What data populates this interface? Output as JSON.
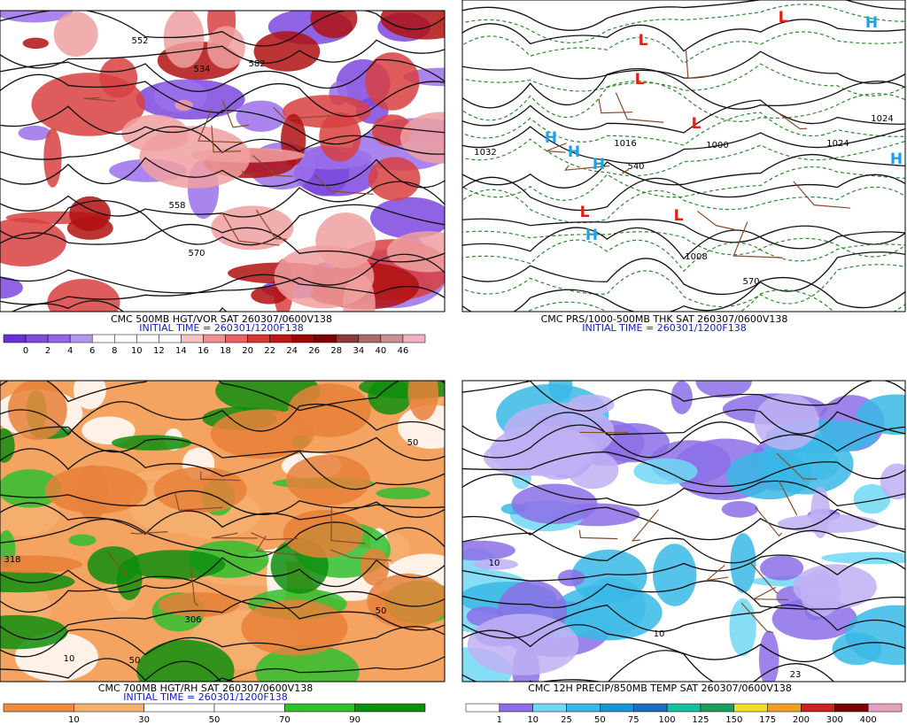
{
  "panels": [
    {
      "caption": "CMC 500MB HGT/VOR SAT 260307/0600V138",
      "init": "INITIAL TIME = 260301/1200F138",
      "background": "#ffffff",
      "legend": {
        "labels": [
          "0",
          "2",
          "4",
          "6",
          "8",
          "10",
          "12",
          "14",
          "16",
          "18",
          "20",
          "22",
          "24",
          "26",
          "28",
          "34",
          "40",
          "46"
        ],
        "colors": [
          "#6a2fd6",
          "#7f4ce0",
          "#9266e6",
          "#b496ee",
          "#ffffff",
          "#ffffff",
          "#ffffff",
          "#ffffff",
          "#f6c2c2",
          "#ef9090",
          "#e86060",
          "#d83434",
          "#c01414",
          "#a00404",
          "#800000",
          "#8a3a3a",
          "#a86a6a",
          "#c89090",
          "#f0b0c0"
        ]
      },
      "map_labels": [
        {
          "text": "552"
        },
        {
          "text": "534"
        },
        {
          "text": "558"
        },
        {
          "text": "570"
        },
        {
          "text": "582"
        }
      ]
    },
    {
      "caption": "CMC PRS/1000-500MB THK SAT 260307/0600V138",
      "init": "INITIAL TIME = 260301/1200F138",
      "background": "#ffffff",
      "map_labels": [
        {
          "text": "1032"
        },
        {
          "text": "1016"
        },
        {
          "text": "1000"
        },
        {
          "text": "1008"
        },
        {
          "text": "570"
        },
        {
          "text": "1024"
        },
        {
          "text": "1024"
        },
        {
          "text": "540"
        },
        {
          "text": "H",
          "color": "#1ea0e6"
        },
        {
          "text": "H",
          "color": "#1ea0e6"
        },
        {
          "text": "H",
          "color": "#1ea0e6"
        },
        {
          "text": "H",
          "color": "#1ea0e6"
        },
        {
          "text": "H",
          "color": "#1ea0e6"
        },
        {
          "text": "H",
          "color": "#1ea0e6"
        },
        {
          "text": "L",
          "color": "#e02010"
        },
        {
          "text": "L",
          "color": "#e02010"
        },
        {
          "text": "L",
          "color": "#e02010"
        },
        {
          "text": "L",
          "color": "#e02010"
        },
        {
          "text": "L",
          "color": "#e02010"
        },
        {
          "text": "L",
          "color": "#e02010"
        }
      ]
    },
    {
      "caption": "CMC 700MB HGT/RH SAT 260307/0600V138",
      "init": "INITIAL TIME = 260301/1200F138",
      "background": "#f4a460",
      "legend": {
        "labels": [
          "10",
          "30",
          "50",
          "70",
          "90"
        ],
        "colors": [
          "#f08a3c",
          "#f5b070",
          "#ffffff",
          "#ffffff",
          "#2fbf2f",
          "#0e8e0e"
        ]
      },
      "map_labels": [
        {
          "text": "318"
        },
        {
          "text": "306"
        },
        {
          "text": "10"
        },
        {
          "text": "50"
        },
        {
          "text": "50"
        },
        {
          "text": "50"
        }
      ]
    },
    {
      "caption": "CMC 12H PRECIP/850MB TEMP SAT 260307/0600V138",
      "background": "#ffffff",
      "legend": {
        "labels": [
          "1",
          "10",
          "25",
          "50",
          "75",
          "100",
          "125",
          "150",
          "175",
          "200",
          "300",
          "400"
        ],
        "colors": [
          "#ffffff",
          "#8c6ee6",
          "#70d8f4",
          "#38b8e6",
          "#1496d2",
          "#1e6ec0",
          "#14c0a0",
          "#1e9e5c",
          "#f0e020",
          "#f0a020",
          "#d02020",
          "#800000",
          "#e8a0c0"
        ]
      },
      "map_labels": [
        {
          "text": "10"
        },
        {
          "text": "10"
        },
        {
          "text": "23"
        }
      ]
    }
  ]
}
